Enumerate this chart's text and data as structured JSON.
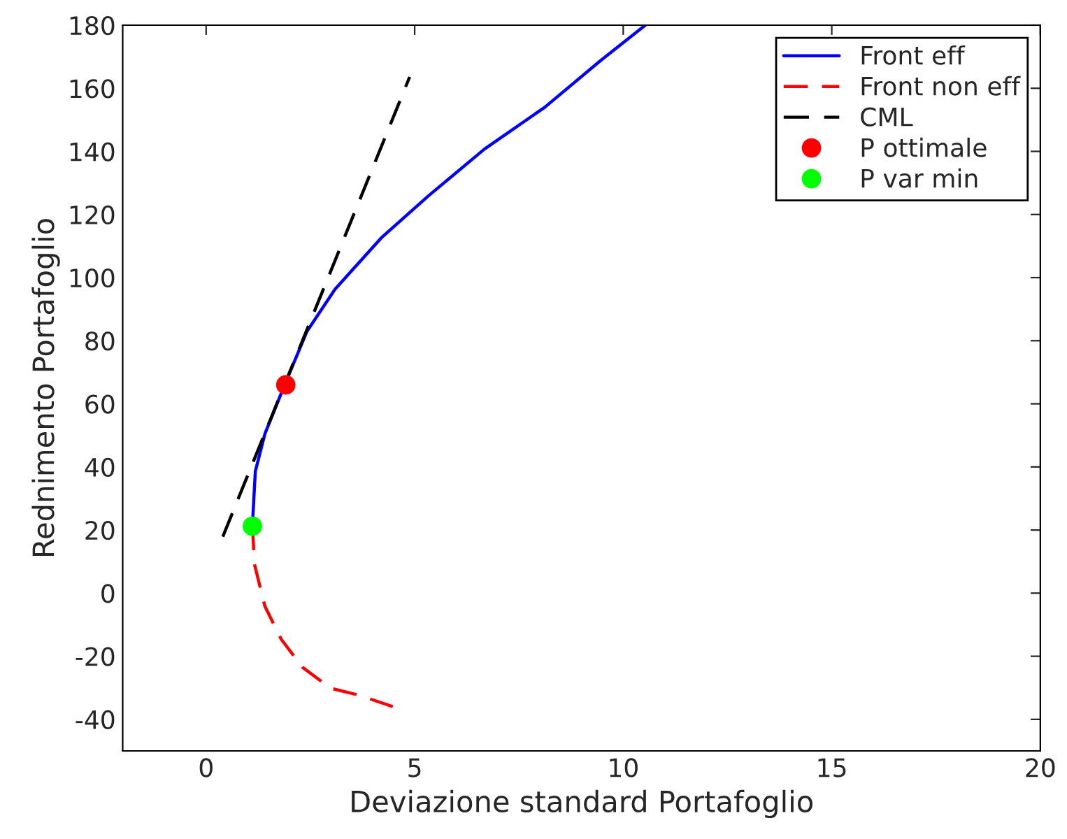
{
  "chart_data": {
    "type": "line",
    "xlabel": "Deviazione standard Portafoglio",
    "ylabel": "Rednimento Portafoglio",
    "xlim": [
      -2,
      20
    ],
    "xticks": [
      0,
      5,
      10,
      15,
      20
    ],
    "ylim": [
      -50,
      180
    ],
    "yticks": [
      -40,
      -20,
      0,
      20,
      40,
      60,
      80,
      100,
      120,
      140,
      160,
      180
    ],
    "grid": false,
    "legend": "top right",
    "series": [
      {
        "name": "Front eff",
        "color": "#0000ff",
        "line_style": "solid",
        "x": [
          1.11,
          1.18,
          1.41,
          1.91,
          2.42,
          3.09,
          4.2,
          5.33,
          6.67,
          8.12,
          9.46,
          10.53
        ],
        "values": [
          21.6,
          38.6,
          50.5,
          66.9,
          83.0,
          96.3,
          112.6,
          125.9,
          140.7,
          154.0,
          168.8,
          180
        ]
      },
      {
        "name": "Front non eff",
        "color": "#ff0000",
        "line_style": "dashed",
        "x": [
          1.11,
          1.16,
          1.41,
          1.8,
          2.31,
          2.98,
          3.65,
          4.49
        ],
        "values": [
          21.2,
          9.1,
          -4.2,
          -14.6,
          -23.5,
          -30.1,
          -32.3,
          -36.0
        ]
      },
      {
        "name": "CML",
        "color": "#000000",
        "line_style": "dashed",
        "x": [
          0.4,
          4.88
        ],
        "values": [
          17.9,
          163.6
        ]
      },
      {
        "name": "P ottimale",
        "type": "scatter",
        "color": "#ff0000",
        "marker": "circle",
        "x": [
          1.91
        ],
        "values": [
          66.0
        ]
      },
      {
        "name": "P var min",
        "type": "scatter",
        "color": "#00ff00",
        "marker": "circle",
        "x": [
          1.11
        ],
        "values": [
          21.2
        ]
      }
    ]
  }
}
